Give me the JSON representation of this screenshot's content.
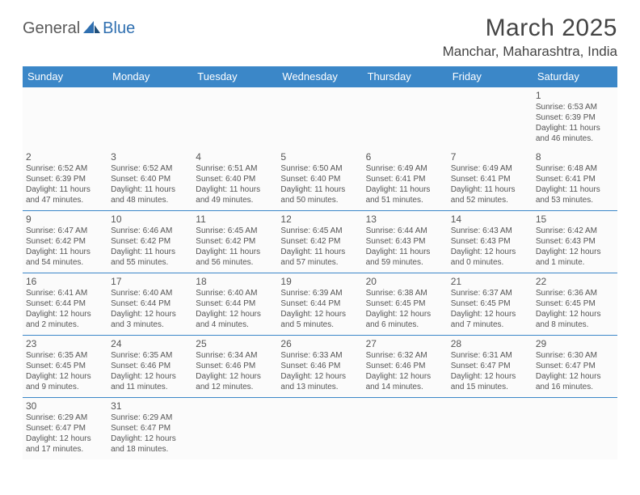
{
  "logo": {
    "part1": "General",
    "part2": "Blue"
  },
  "title": "March 2025",
  "location": "Manchar, Maharashtra, India",
  "colors": {
    "header_bg": "#3b87c8",
    "header_text": "#ffffff",
    "divider": "#3b87c8",
    "text": "#555555",
    "logo_gray": "#5a5a5a",
    "logo_blue": "#2f6fb0",
    "cell_bg": "#fbfbfb"
  },
  "weekdays": [
    "Sunday",
    "Monday",
    "Tuesday",
    "Wednesday",
    "Thursday",
    "Friday",
    "Saturday"
  ],
  "weeks": [
    [
      null,
      null,
      null,
      null,
      null,
      null,
      {
        "n": "1",
        "sr": "Sunrise: 6:53 AM",
        "ss": "Sunset: 6:39 PM",
        "dl": "Daylight: 11 hours and 46 minutes."
      }
    ],
    [
      {
        "n": "2",
        "sr": "Sunrise: 6:52 AM",
        "ss": "Sunset: 6:39 PM",
        "dl": "Daylight: 11 hours and 47 minutes."
      },
      {
        "n": "3",
        "sr": "Sunrise: 6:52 AM",
        "ss": "Sunset: 6:40 PM",
        "dl": "Daylight: 11 hours and 48 minutes."
      },
      {
        "n": "4",
        "sr": "Sunrise: 6:51 AM",
        "ss": "Sunset: 6:40 PM",
        "dl": "Daylight: 11 hours and 49 minutes."
      },
      {
        "n": "5",
        "sr": "Sunrise: 6:50 AM",
        "ss": "Sunset: 6:40 PM",
        "dl": "Daylight: 11 hours and 50 minutes."
      },
      {
        "n": "6",
        "sr": "Sunrise: 6:49 AM",
        "ss": "Sunset: 6:41 PM",
        "dl": "Daylight: 11 hours and 51 minutes."
      },
      {
        "n": "7",
        "sr": "Sunrise: 6:49 AM",
        "ss": "Sunset: 6:41 PM",
        "dl": "Daylight: 11 hours and 52 minutes."
      },
      {
        "n": "8",
        "sr": "Sunrise: 6:48 AM",
        "ss": "Sunset: 6:41 PM",
        "dl": "Daylight: 11 hours and 53 minutes."
      }
    ],
    [
      {
        "n": "9",
        "sr": "Sunrise: 6:47 AM",
        "ss": "Sunset: 6:42 PM",
        "dl": "Daylight: 11 hours and 54 minutes."
      },
      {
        "n": "10",
        "sr": "Sunrise: 6:46 AM",
        "ss": "Sunset: 6:42 PM",
        "dl": "Daylight: 11 hours and 55 minutes."
      },
      {
        "n": "11",
        "sr": "Sunrise: 6:45 AM",
        "ss": "Sunset: 6:42 PM",
        "dl": "Daylight: 11 hours and 56 minutes."
      },
      {
        "n": "12",
        "sr": "Sunrise: 6:45 AM",
        "ss": "Sunset: 6:42 PM",
        "dl": "Daylight: 11 hours and 57 minutes."
      },
      {
        "n": "13",
        "sr": "Sunrise: 6:44 AM",
        "ss": "Sunset: 6:43 PM",
        "dl": "Daylight: 11 hours and 59 minutes."
      },
      {
        "n": "14",
        "sr": "Sunrise: 6:43 AM",
        "ss": "Sunset: 6:43 PM",
        "dl": "Daylight: 12 hours and 0 minutes."
      },
      {
        "n": "15",
        "sr": "Sunrise: 6:42 AM",
        "ss": "Sunset: 6:43 PM",
        "dl": "Daylight: 12 hours and 1 minute."
      }
    ],
    [
      {
        "n": "16",
        "sr": "Sunrise: 6:41 AM",
        "ss": "Sunset: 6:44 PM",
        "dl": "Daylight: 12 hours and 2 minutes."
      },
      {
        "n": "17",
        "sr": "Sunrise: 6:40 AM",
        "ss": "Sunset: 6:44 PM",
        "dl": "Daylight: 12 hours and 3 minutes."
      },
      {
        "n": "18",
        "sr": "Sunrise: 6:40 AM",
        "ss": "Sunset: 6:44 PM",
        "dl": "Daylight: 12 hours and 4 minutes."
      },
      {
        "n": "19",
        "sr": "Sunrise: 6:39 AM",
        "ss": "Sunset: 6:44 PM",
        "dl": "Daylight: 12 hours and 5 minutes."
      },
      {
        "n": "20",
        "sr": "Sunrise: 6:38 AM",
        "ss": "Sunset: 6:45 PM",
        "dl": "Daylight: 12 hours and 6 minutes."
      },
      {
        "n": "21",
        "sr": "Sunrise: 6:37 AM",
        "ss": "Sunset: 6:45 PM",
        "dl": "Daylight: 12 hours and 7 minutes."
      },
      {
        "n": "22",
        "sr": "Sunrise: 6:36 AM",
        "ss": "Sunset: 6:45 PM",
        "dl": "Daylight: 12 hours and 8 minutes."
      }
    ],
    [
      {
        "n": "23",
        "sr": "Sunrise: 6:35 AM",
        "ss": "Sunset: 6:45 PM",
        "dl": "Daylight: 12 hours and 9 minutes."
      },
      {
        "n": "24",
        "sr": "Sunrise: 6:35 AM",
        "ss": "Sunset: 6:46 PM",
        "dl": "Daylight: 12 hours and 11 minutes."
      },
      {
        "n": "25",
        "sr": "Sunrise: 6:34 AM",
        "ss": "Sunset: 6:46 PM",
        "dl": "Daylight: 12 hours and 12 minutes."
      },
      {
        "n": "26",
        "sr": "Sunrise: 6:33 AM",
        "ss": "Sunset: 6:46 PM",
        "dl": "Daylight: 12 hours and 13 minutes."
      },
      {
        "n": "27",
        "sr": "Sunrise: 6:32 AM",
        "ss": "Sunset: 6:46 PM",
        "dl": "Daylight: 12 hours and 14 minutes."
      },
      {
        "n": "28",
        "sr": "Sunrise: 6:31 AM",
        "ss": "Sunset: 6:47 PM",
        "dl": "Daylight: 12 hours and 15 minutes."
      },
      {
        "n": "29",
        "sr": "Sunrise: 6:30 AM",
        "ss": "Sunset: 6:47 PM",
        "dl": "Daylight: 12 hours and 16 minutes."
      }
    ],
    [
      {
        "n": "30",
        "sr": "Sunrise: 6:29 AM",
        "ss": "Sunset: 6:47 PM",
        "dl": "Daylight: 12 hours and 17 minutes."
      },
      {
        "n": "31",
        "sr": "Sunrise: 6:29 AM",
        "ss": "Sunset: 6:47 PM",
        "dl": "Daylight: 12 hours and 18 minutes."
      },
      null,
      null,
      null,
      null,
      null
    ]
  ]
}
